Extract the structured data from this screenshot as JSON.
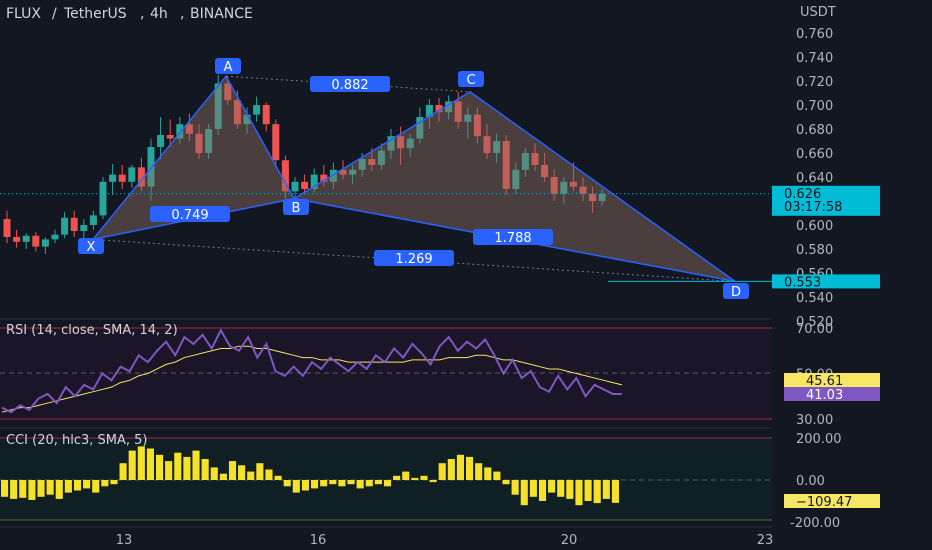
{
  "header": {
    "symbol": "FLUX",
    "separator": "/",
    "quote": "TetherUS",
    "interval": "4h",
    "exchange": "BINANCE",
    "currency": "USDT"
  },
  "price_axis": {
    "ticks": [
      "0.760",
      "0.740",
      "0.720",
      "0.700",
      "0.680",
      "0.660",
      "0.640",
      "0.620",
      "0.600",
      "0.580",
      "0.560",
      "0.540",
      "0.520"
    ]
  },
  "last_price": {
    "value": "0.626",
    "countdown": "03:17:58",
    "color": "#00bcd4"
  },
  "target_price": {
    "value": "0.553",
    "color": "#00bcd4"
  },
  "time_axis": {
    "labels": [
      "13",
      "16",
      "20",
      "23"
    ]
  },
  "harmonic": {
    "points": [
      {
        "name": "X",
        "price": 0.588,
        "label": "X"
      },
      {
        "name": "A",
        "price": 0.724,
        "label": "A"
      },
      {
        "name": "B",
        "price": 0.622,
        "label": "B"
      },
      {
        "name": "C",
        "price": 0.711,
        "label": "C"
      },
      {
        "name": "D",
        "price": 0.553,
        "label": "D"
      }
    ],
    "ratios": [
      {
        "name": "xab",
        "value": "0.749"
      },
      {
        "name": "xac",
        "value": "0.882"
      },
      {
        "name": "bcd",
        "value": "1.788"
      },
      {
        "name": "xad",
        "value": "1.269"
      }
    ],
    "line_color": "#2962ff",
    "fill_color": "#8d6e63"
  },
  "rsi": {
    "title": "RSI (14, close, SMA, 14, 2)",
    "ticks": [
      "70.00",
      "50.00",
      "30.00"
    ],
    "value": "41.03",
    "value_color": "#7e57c2",
    "sma_value": "45.61",
    "sma_color": "#f5e663",
    "series": [
      35,
      33,
      36,
      34,
      39,
      41,
      37,
      44,
      40,
      45,
      43,
      50,
      47,
      53,
      51,
      58,
      55,
      60,
      64,
      58,
      66,
      63,
      67,
      61,
      69,
      62,
      60,
      66,
      57,
      63,
      51,
      49,
      53,
      49,
      55,
      52,
      57,
      54,
      51,
      55,
      52,
      58,
      55,
      61,
      57,
      63,
      59,
      54,
      62,
      66,
      60,
      64,
      61,
      65,
      58,
      50,
      56,
      48,
      51,
      44,
      42,
      49,
      43,
      48,
      40,
      45,
      43,
      41,
      41
    ],
    "sma": [
      33,
      34,
      35,
      35,
      36,
      37,
      38,
      39,
      40,
      41,
      42,
      43,
      44,
      46,
      47,
      49,
      50,
      52,
      54,
      55,
      57,
      58,
      59,
      60,
      61,
      61,
      62,
      62,
      61,
      61,
      60,
      59,
      58,
      57,
      57,
      56,
      56,
      56,
      55,
      55,
      55,
      55,
      55,
      55,
      55,
      56,
      56,
      56,
      56,
      57,
      57,
      57,
      58,
      58,
      57,
      56,
      56,
      55,
      54,
      53,
      52,
      52,
      51,
      50,
      49,
      48,
      47,
      46,
      45
    ]
  },
  "cci": {
    "title": "CCI (20, hlc3, SMA, 5)",
    "ticks": [
      "200.00",
      "0.00",
      "-200.00"
    ],
    "value": "−109.47",
    "value_color": "#f5e663",
    "values": [
      -80,
      -90,
      -85,
      -95,
      -80,
      -70,
      -90,
      -60,
      -50,
      -40,
      -60,
      -30,
      -20,
      80,
      140,
      160,
      150,
      120,
      90,
      130,
      110,
      140,
      100,
      60,
      30,
      90,
      70,
      40,
      80,
      50,
      20,
      -30,
      -60,
      -50,
      -40,
      -30,
      -20,
      -30,
      -20,
      -40,
      -30,
      -20,
      -30,
      20,
      40,
      10,
      20,
      -10,
      80,
      100,
      120,
      110,
      80,
      60,
      40,
      -20,
      -70,
      -120,
      -80,
      -100,
      -60,
      -80,
      -90,
      -120,
      -100,
      -110,
      -90,
      -109
    ]
  },
  "chart_data": {
    "type": "candlestick",
    "title": "FLUX / TetherUS, 4h, BINANCE",
    "ylabel": "USDT",
    "ylim": [
      0.52,
      0.76
    ],
    "series": [
      {
        "name": "FLUX/USDT",
        "ohlc": [
          [
            0.605,
            0.612,
            0.585,
            0.59
          ],
          [
            0.59,
            0.596,
            0.581,
            0.586
          ],
          [
            0.586,
            0.593,
            0.58,
            0.591
          ],
          [
            0.591,
            0.594,
            0.578,
            0.582
          ],
          [
            0.582,
            0.59,
            0.576,
            0.588
          ],
          [
            0.588,
            0.596,
            0.585,
            0.592
          ],
          [
            0.592,
            0.611,
            0.589,
            0.606
          ],
          [
            0.606,
            0.612,
            0.59,
            0.595
          ],
          [
            0.595,
            0.605,
            0.588,
            0.6
          ],
          [
            0.6,
            0.612,
            0.596,
            0.608
          ],
          [
            0.608,
            0.64,
            0.605,
            0.636
          ],
          [
            0.636,
            0.651,
            0.625,
            0.642
          ],
          [
            0.642,
            0.65,
            0.63,
            0.636
          ],
          [
            0.636,
            0.65,
            0.631,
            0.648
          ],
          [
            0.648,
            0.656,
            0.628,
            0.632
          ],
          [
            0.632,
            0.672,
            0.62,
            0.665
          ],
          [
            0.665,
            0.69,
            0.655,
            0.675
          ],
          [
            0.675,
            0.688,
            0.665,
            0.672
          ],
          [
            0.672,
            0.69,
            0.668,
            0.684
          ],
          [
            0.684,
            0.693,
            0.67,
            0.676
          ],
          [
            0.676,
            0.684,
            0.655,
            0.66
          ],
          [
            0.66,
            0.684,
            0.655,
            0.68
          ],
          [
            0.68,
            0.725,
            0.675,
            0.718
          ],
          [
            0.718,
            0.724,
            0.7,
            0.704
          ],
          [
            0.704,
            0.712,
            0.68,
            0.684
          ],
          [
            0.684,
            0.698,
            0.676,
            0.692
          ],
          [
            0.692,
            0.707,
            0.686,
            0.7
          ],
          [
            0.7,
            0.702,
            0.678,
            0.684
          ],
          [
            0.684,
            0.688,
            0.648,
            0.654
          ],
          [
            0.654,
            0.658,
            0.622,
            0.628
          ],
          [
            0.628,
            0.64,
            0.622,
            0.636
          ],
          [
            0.636,
            0.642,
            0.626,
            0.63
          ],
          [
            0.63,
            0.647,
            0.627,
            0.642
          ],
          [
            0.642,
            0.65,
            0.632,
            0.636
          ],
          [
            0.636,
            0.652,
            0.63,
            0.646
          ],
          [
            0.646,
            0.654,
            0.638,
            0.642
          ],
          [
            0.642,
            0.65,
            0.634,
            0.646
          ],
          [
            0.646,
            0.66,
            0.64,
            0.655
          ],
          [
            0.655,
            0.664,
            0.645,
            0.65
          ],
          [
            0.65,
            0.668,
            0.646,
            0.662
          ],
          [
            0.662,
            0.68,
            0.655,
            0.674
          ],
          [
            0.674,
            0.682,
            0.65,
            0.664
          ],
          [
            0.664,
            0.676,
            0.657,
            0.672
          ],
          [
            0.672,
            0.698,
            0.668,
            0.69
          ],
          [
            0.69,
            0.705,
            0.68,
            0.7
          ],
          [
            0.7,
            0.706,
            0.686,
            0.694
          ],
          [
            0.694,
            0.708,
            0.688,
            0.703
          ],
          [
            0.703,
            0.711,
            0.68,
            0.686
          ],
          [
            0.686,
            0.698,
            0.672,
            0.692
          ],
          [
            0.692,
            0.698,
            0.668,
            0.674
          ],
          [
            0.674,
            0.684,
            0.655,
            0.66
          ],
          [
            0.66,
            0.676,
            0.652,
            0.67
          ],
          [
            0.67,
            0.675,
            0.625,
            0.63
          ],
          [
            0.63,
            0.652,
            0.626,
            0.646
          ],
          [
            0.646,
            0.664,
            0.64,
            0.66
          ],
          [
            0.66,
            0.668,
            0.645,
            0.65
          ],
          [
            0.65,
            0.66,
            0.636,
            0.64
          ],
          [
            0.64,
            0.646,
            0.62,
            0.626
          ],
          [
            0.626,
            0.64,
            0.618,
            0.636
          ],
          [
            0.636,
            0.652,
            0.628,
            0.632
          ],
          [
            0.632,
            0.64,
            0.62,
            0.626
          ],
          [
            0.626,
            0.632,
            0.61,
            0.62
          ],
          [
            0.62,
            0.63,
            0.616,
            0.626
          ]
        ]
      }
    ],
    "legend_position": "none"
  }
}
